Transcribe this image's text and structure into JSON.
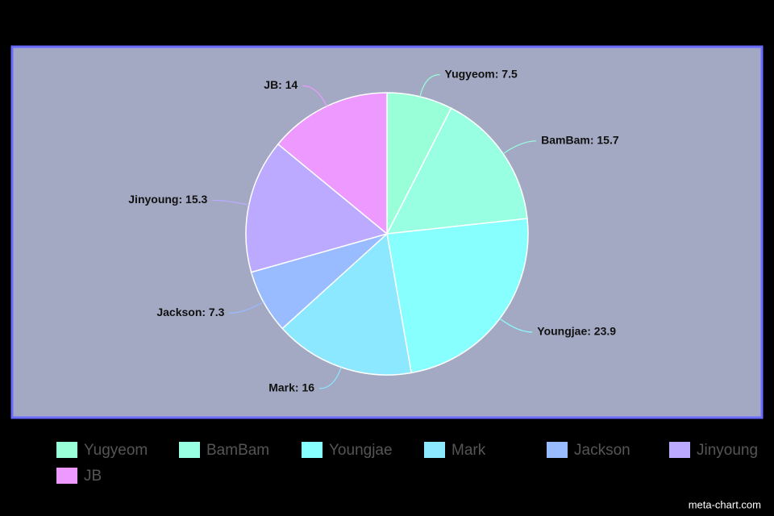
{
  "chart_data": {
    "type": "pie",
    "categories": [
      "Yugyeom",
      "BamBam",
      "Youngjae",
      "Mark",
      "Jackson",
      "Jinyoung",
      "JB"
    ],
    "values": [
      7.5,
      15.7,
      23.9,
      16,
      7.3,
      15.3,
      14
    ],
    "value_labels": [
      "Yugyeom: 7.5",
      "BamBam: 15.7",
      "Youngjae: 23.9",
      "Mark: 16",
      "Jackson: 7.3",
      "Jinyoung: 15.3",
      "JB: 14"
    ],
    "colors": [
      "#99ffd9",
      "#99ffe3",
      "#88ffff",
      "#8be8ff",
      "#99bbff",
      "#bbaaff",
      "#ee99ff"
    ],
    "legend": "bottom",
    "watermark": "meta-chart.com"
  }
}
